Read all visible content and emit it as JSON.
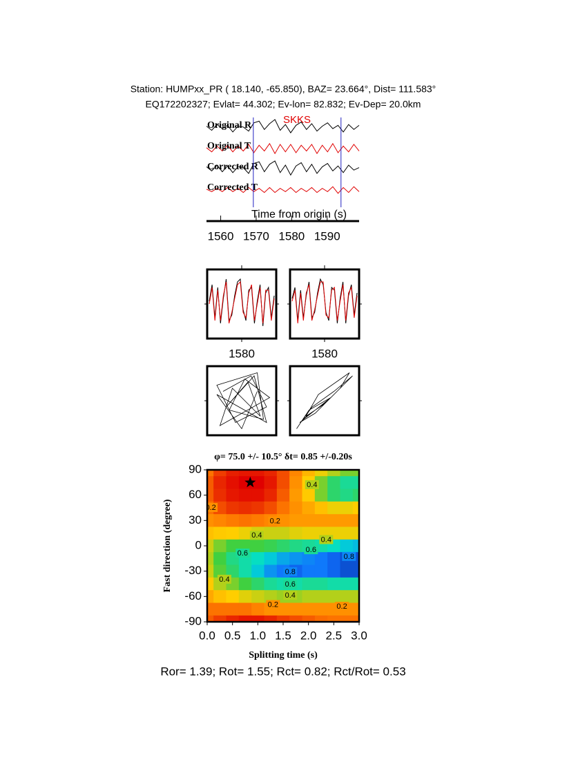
{
  "header": {
    "line1": "Station: HUMPxx_PR (  18.140,  -65.850), BAZ=   23.664°, Dist=  111.583°",
    "line2": "EQ172202327; Evlat=  44.302; Ev-lon=  82.832; Ev-Dep= 20.0km"
  },
  "chart_data": [
    {
      "type": "waveform",
      "xlabel": "Time from origin (s)",
      "phase": "SKKS",
      "phase_color": "#e00000",
      "xlim": [
        1556,
        1599
      ],
      "xticks": [
        1560,
        1570,
        1580,
        1590
      ],
      "markers": [
        1569.2,
        1593.9
      ],
      "marker_color": "#2020c0",
      "series": [
        {
          "name": "Original R",
          "color": "#000000",
          "values": [
            0.2,
            -0.3,
            0.4,
            -0.1,
            0.3,
            -0.5,
            0.2,
            0.1,
            -0.4,
            0.6,
            0.8,
            -0.2,
            0.5,
            1.0,
            -0.3,
            0.4,
            -0.6,
            0.3,
            0.7,
            -0.2,
            0.5,
            -0.4,
            0.2,
            0.6,
            -0.1,
            0.3,
            -0.5,
            0.4,
            -0.2,
            0.3
          ]
        },
        {
          "name": "Original T",
          "color": "#e00000",
          "values": [
            0.1,
            -0.4,
            0.3,
            -0.3,
            0.4,
            -0.4,
            0.3,
            -0.3,
            0.5,
            -0.5,
            0.4,
            -0.3,
            0.6,
            -0.6,
            0.5,
            -0.4,
            0.5,
            -0.5,
            0.4,
            -0.3,
            0.5,
            -0.6,
            0.4,
            -0.4,
            0.6,
            -0.5,
            0.3,
            -0.4,
            0.5,
            -0.3
          ]
        },
        {
          "name": "Corrected R",
          "color": "#000000",
          "values": [
            0.3,
            -0.2,
            0.5,
            -0.3,
            0.4,
            -0.4,
            0.3,
            0.2,
            -0.5,
            0.7,
            0.9,
            -0.3,
            0.6,
            1.0,
            -0.4,
            0.5,
            -0.7,
            0.4,
            0.8,
            -0.3,
            0.6,
            -0.5,
            0.3,
            0.7,
            -0.2,
            0.4,
            -0.4,
            0.5,
            -0.1,
            0.2
          ]
        },
        {
          "name": "Corrected T",
          "color": "#e00000",
          "values": [
            0.1,
            -0.2,
            0.2,
            -0.2,
            0.3,
            -0.2,
            0.2,
            -0.3,
            0.3,
            -0.2,
            0.2,
            -0.3,
            0.3,
            -0.3,
            0.2,
            -0.2,
            0.3,
            -0.3,
            0.2,
            -0.2,
            0.3,
            -0.3,
            0.2,
            -0.2,
            0.4,
            -0.4,
            0.3,
            -0.3,
            0.4,
            -0.2
          ]
        }
      ]
    },
    {
      "type": "overlay",
      "panels": [
        {
          "xlim": [
            1570,
            1590
          ],
          "xticks": [
            1580
          ],
          "series": [
            {
              "color": "#000000",
              "values": [
                0.1,
                0.7,
                -0.5,
                0.6,
                -0.7,
                0.2,
                0.9,
                -0.6,
                -0.4,
                0.3,
                0.8,
                0.9,
                -0.2,
                -0.6,
                0.5,
                0.6,
                -0.7,
                0.1,
                0.7,
                -0.8,
                0.4,
                0.6,
                -0.5,
                0.3
              ]
            },
            {
              "color": "#e00000",
              "values": [
                0.0,
                0.6,
                -0.6,
                0.5,
                -0.6,
                0.3,
                0.8,
                -0.7,
                -0.3,
                0.2,
                0.7,
                0.8,
                -0.3,
                -0.5,
                0.4,
                0.7,
                -0.6,
                0.0,
                0.6,
                -0.7,
                0.5,
                0.5,
                -0.6,
                0.2
              ]
            }
          ]
        },
        {
          "xlim": [
            1570,
            1590
          ],
          "xticks": [
            1580
          ],
          "series": [
            {
              "color": "#000000",
              "values": [
                0.2,
                0.6,
                -0.6,
                0.5,
                -0.5,
                0.3,
                0.8,
                -0.5,
                -0.3,
                0.4,
                0.9,
                0.7,
                -0.3,
                -0.6,
                0.6,
                0.5,
                -0.7,
                0.2,
                0.8,
                -0.7,
                0.3,
                0.7,
                -0.4,
                0.4
              ]
            },
            {
              "color": "#e00000",
              "values": [
                0.1,
                0.5,
                -0.7,
                0.4,
                -0.6,
                0.4,
                0.7,
                -0.6,
                -0.2,
                0.3,
                0.8,
                0.8,
                -0.4,
                -0.5,
                0.5,
                0.6,
                -0.6,
                0.1,
                0.7,
                -0.6,
                0.4,
                0.6,
                -0.5,
                0.3
              ]
            }
          ]
        }
      ]
    },
    {
      "type": "particle-motion",
      "panels": [
        {
          "x": [
            -0.6,
            0.3,
            0.8,
            -0.2,
            -0.8,
            0.5,
            0.7,
            -0.4,
            0.1,
            0.9,
            -0.7,
            -0.3,
            0.6,
            0.2,
            -0.5,
            0.4,
            0.8,
            -0.8,
            0.0,
            0.5
          ],
          "y": [
            0.3,
            0.8,
            -0.2,
            -0.7,
            0.5,
            0.9,
            -0.6,
            -0.3,
            0.7,
            0.1,
            -0.8,
            0.4,
            -0.5,
            0.6,
            -0.2,
            0.8,
            -0.7,
            0.2,
            -0.9,
            0.3
          ]
        },
        {
          "x": [
            -0.9,
            -0.5,
            0.2,
            0.6,
            0.9,
            0.3,
            -0.4,
            -0.7,
            0.1,
            0.5,
            0.8,
            -0.2,
            -0.6,
            0.0,
            0.4,
            0.7,
            -0.3,
            -0.8,
            0.2,
            0.6
          ],
          "y": [
            -0.9,
            -0.3,
            0.1,
            0.5,
            0.8,
            0.3,
            -0.2,
            -0.6,
            0.0,
            0.4,
            0.9,
            0.2,
            -0.5,
            -0.1,
            0.3,
            0.6,
            -0.4,
            -0.7,
            0.1,
            0.5
          ]
        }
      ]
    },
    {
      "type": "contour",
      "title": "φ= 75.0 +/- 10.5° δt= 0.85 +/-0.20s",
      "xlabel": "Splitting time (s)",
      "ylabel": "Fast direction (degree)",
      "xlim": [
        0,
        3
      ],
      "ylim": [
        -90,
        90
      ],
      "xticks": [
        {
          "value": 0,
          "label": "0.0"
        },
        0.5,
        {
          "value": 1,
          "label": "1.0"
        },
        1.5,
        {
          "value": 2,
          "label": "2.0"
        },
        2.5,
        {
          "value": 3,
          "label": "3.0"
        }
      ],
      "yticks": [
        -90,
        -60,
        -30,
        0,
        30,
        60,
        90
      ],
      "x": [
        0,
        0.25,
        0.5,
        0.75,
        1,
        1.25,
        1.5,
        1.75,
        2,
        2.25,
        2.5,
        2.75,
        3
      ],
      "y": [
        90,
        75,
        60,
        45,
        30,
        15,
        0,
        -15,
        -30,
        -45,
        -60,
        -75,
        -90
      ],
      "z": [
        [
          0.15,
          0.08,
          0.04,
          0.03,
          0.03,
          0.05,
          0.1,
          0.18,
          0.28,
          0.35,
          0.4,
          0.45,
          0.45
        ],
        [
          0.12,
          0.05,
          0.02,
          0.0,
          0.0,
          0.03,
          0.1,
          0.2,
          0.33,
          0.45,
          0.55,
          0.6,
          0.6
        ],
        [
          0.12,
          0.06,
          0.03,
          0.02,
          0.02,
          0.05,
          0.12,
          0.22,
          0.32,
          0.45,
          0.55,
          0.58,
          0.55
        ],
        [
          0.15,
          0.1,
          0.07,
          0.06,
          0.07,
          0.1,
          0.15,
          0.2,
          0.25,
          0.3,
          0.35,
          0.35,
          0.33
        ],
        [
          0.2,
          0.18,
          0.16,
          0.15,
          0.16,
          0.18,
          0.2,
          0.22,
          0.22,
          0.22,
          0.22,
          0.22,
          0.22
        ],
        [
          0.3,
          0.32,
          0.33,
          0.35,
          0.37,
          0.38,
          0.38,
          0.36,
          0.35,
          0.35,
          0.35,
          0.35,
          0.35
        ],
        [
          0.38,
          0.45,
          0.5,
          0.5,
          0.5,
          0.52,
          0.55,
          0.58,
          0.6,
          0.62,
          0.65,
          0.7,
          0.72
        ],
        [
          0.4,
          0.5,
          0.58,
          0.62,
          0.65,
          0.7,
          0.75,
          0.78,
          0.8,
          0.82,
          0.85,
          0.88,
          0.88
        ],
        [
          0.38,
          0.48,
          0.55,
          0.62,
          0.7,
          0.78,
          0.82,
          0.85,
          0.82,
          0.82,
          0.85,
          0.88,
          0.88
        ],
        [
          0.32,
          0.4,
          0.45,
          0.5,
          0.55,
          0.6,
          0.62,
          0.62,
          0.6,
          0.6,
          0.62,
          0.62,
          0.62
        ],
        [
          0.25,
          0.3,
          0.33,
          0.36,
          0.38,
          0.4,
          0.42,
          0.42,
          0.4,
          0.4,
          0.4,
          0.4,
          0.4
        ],
        [
          0.15,
          0.15,
          0.15,
          0.15,
          0.17,
          0.2,
          0.2,
          0.2,
          0.2,
          0.2,
          0.2,
          0.2,
          0.2
        ],
        [
          0.12,
          0.08,
          0.05,
          0.03,
          0.03,
          0.05,
          0.08,
          0.1,
          0.12,
          0.14,
          0.15,
          0.15,
          0.15
        ]
      ],
      "colormap": [
        "#e00000",
        "#ff8000",
        "#ffd000",
        "#40d040",
        "#00e0d0",
        "#1070ff",
        "#000060"
      ],
      "best": {
        "x": 0.85,
        "y": 75
      },
      "contour_labels": [
        {
          "level": 0.4,
          "x": 2.07,
          "y": 72
        },
        {
          "level": 0.2,
          "x": 0.07,
          "y": 45
        },
        {
          "level": 0.2,
          "x": 1.34,
          "y": 29
        },
        {
          "level": 0.4,
          "x": 0.98,
          "y": 12
        },
        {
          "level": 0.4,
          "x": 2.35,
          "y": 7
        },
        {
          "level": 0.6,
          "x": 2.05,
          "y": -5
        },
        {
          "level": 0.8,
          "x": 2.8,
          "y": -13
        },
        {
          "level": 0.6,
          "x": 0.7,
          "y": -9
        },
        {
          "level": 0.8,
          "x": 1.64,
          "y": -31
        },
        {
          "level": 0.4,
          "x": 0.34,
          "y": -40
        },
        {
          "level": 0.6,
          "x": 1.64,
          "y": -46
        },
        {
          "level": 0.4,
          "x": 1.64,
          "y": -59
        },
        {
          "level": 0.2,
          "x": 1.3,
          "y": -70
        },
        {
          "level": 0.2,
          "x": 2.66,
          "y": -72
        }
      ]
    }
  ],
  "footer": "Ror= 1.39; Rot= 1.55; Rct= 0.82; Rct/Rot= 0.53"
}
